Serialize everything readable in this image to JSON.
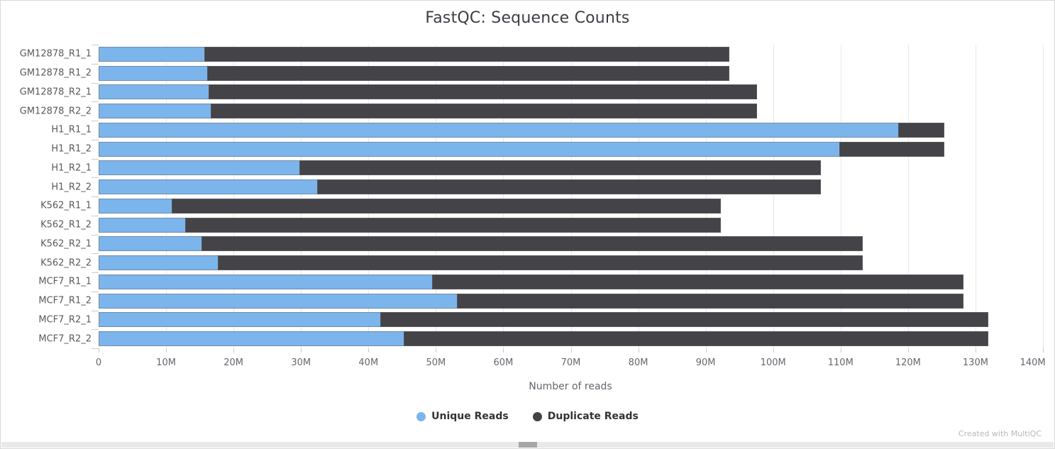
{
  "title": "FastQC: Sequence Counts",
  "credits": "Created with MultiQC",
  "axis": {
    "x_title": "Number of reads",
    "xtick_labels": [
      "0",
      "10M",
      "20M",
      "30M",
      "40M",
      "50M",
      "60M",
      "70M",
      "80M",
      "90M",
      "100M",
      "110M",
      "120M",
      "130M",
      "140M"
    ]
  },
  "legend": {
    "items": [
      {
        "label": "Unique Reads",
        "color": "#7cb5ec"
      },
      {
        "label": "Duplicate Reads",
        "color": "#434348"
      }
    ]
  },
  "chart_data": {
    "type": "bar",
    "orientation": "horizontal",
    "stacked": true,
    "title": "FastQC: Sequence Counts",
    "xlabel": "Number of reads",
    "ylabel": "",
    "xlim_millions": [
      0,
      140
    ],
    "grid": true,
    "legend_position": "bottom",
    "categories": [
      "GM12878_R1_1",
      "GM12878_R1_2",
      "GM12878_R2_1",
      "GM12878_R2_2",
      "H1_R1_1",
      "H1_R1_2",
      "H1_R2_1",
      "H1_R2_2",
      "K562_R1_1",
      "K562_R1_2",
      "K562_R2_1",
      "K562_R2_2",
      "MCF7_R1_1",
      "MCF7_R1_2",
      "MCF7_R2_1",
      "MCF7_R2_2"
    ],
    "series": [
      {
        "name": "Unique Reads",
        "color": "#7cb5ec",
        "values_millions": [
          15.8,
          16.2,
          16.4,
          16.7,
          118.6,
          109.9,
          29.9,
          32.5,
          10.9,
          12.9,
          15.4,
          17.8,
          49.5,
          53.2,
          41.9,
          45.3
        ]
      },
      {
        "name": "Duplicate Reads",
        "color": "#434348",
        "values_millions": [
          77.8,
          77.4,
          81.3,
          81.0,
          6.9,
          15.6,
          77.3,
          74.7,
          81.4,
          79.4,
          98.0,
          95.6,
          78.8,
          75.1,
          90.1,
          86.7
        ]
      }
    ],
    "stack_totals_millions": [
      93.6,
      93.6,
      97.7,
      97.7,
      125.5,
      125.5,
      107.2,
      107.2,
      92.3,
      92.3,
      113.4,
      113.4,
      128.3,
      128.3,
      132.0,
      132.0
    ]
  },
  "colors": {
    "grid": "#e8e8e8",
    "tick": "#cccccc",
    "axis_text": "#66666e",
    "category_text": "#5a5a5a",
    "title_text": "#3c3c44",
    "credits_text": "#b8b8b8"
  }
}
